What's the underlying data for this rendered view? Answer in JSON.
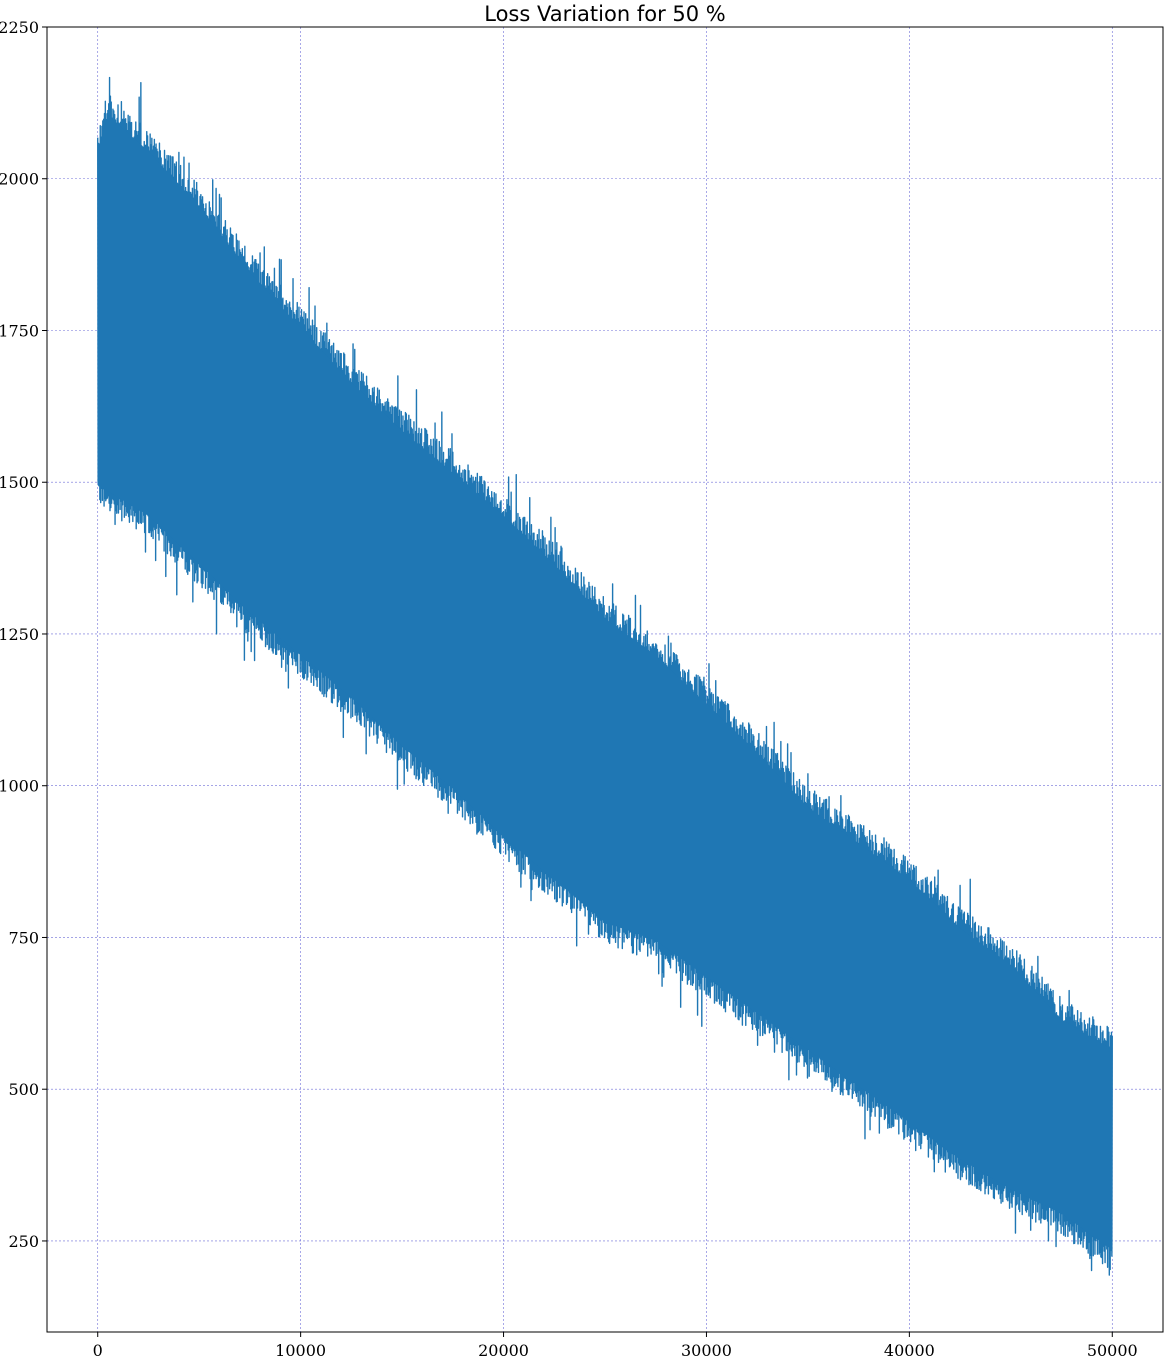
{
  "chart_data": {
    "type": "line",
    "title": "Loss Variation for 50 %",
    "xlabel": "",
    "ylabel": "",
    "xlim": [
      -2500,
      52500
    ],
    "ylim": [
      100,
      2250
    ],
    "xticks": [
      0,
      10000,
      20000,
      30000,
      40000,
      50000
    ],
    "yticks": [
      250,
      500,
      750,
      1000,
      1250,
      1500,
      1750,
      2000,
      2250
    ],
    "grid": true,
    "grid_color": "#6f6fd8",
    "series": [
      {
        "color": "#1f77b4",
        "envelope": {
          "x": [
            0,
            500,
            2500,
            5000,
            7500,
            10000,
            12500,
            15000,
            17500,
            20000,
            22500,
            25000,
            27500,
            30000,
            32500,
            35000,
            37500,
            40000,
            42500,
            45000,
            47500,
            50000
          ],
          "upper": [
            2080,
            2140,
            2080,
            1990,
            1880,
            1790,
            1700,
            1620,
            1550,
            1480,
            1400,
            1310,
            1250,
            1170,
            1090,
            1000,
            940,
            880,
            800,
            740,
            650,
            600
          ],
          "lower": [
            1460,
            1450,
            1410,
            1330,
            1250,
            1180,
            1110,
            1030,
            960,
            880,
            810,
            740,
            710,
            650,
            590,
            530,
            470,
            410,
            350,
            300,
            260,
            200
          ]
        }
      }
    ]
  }
}
